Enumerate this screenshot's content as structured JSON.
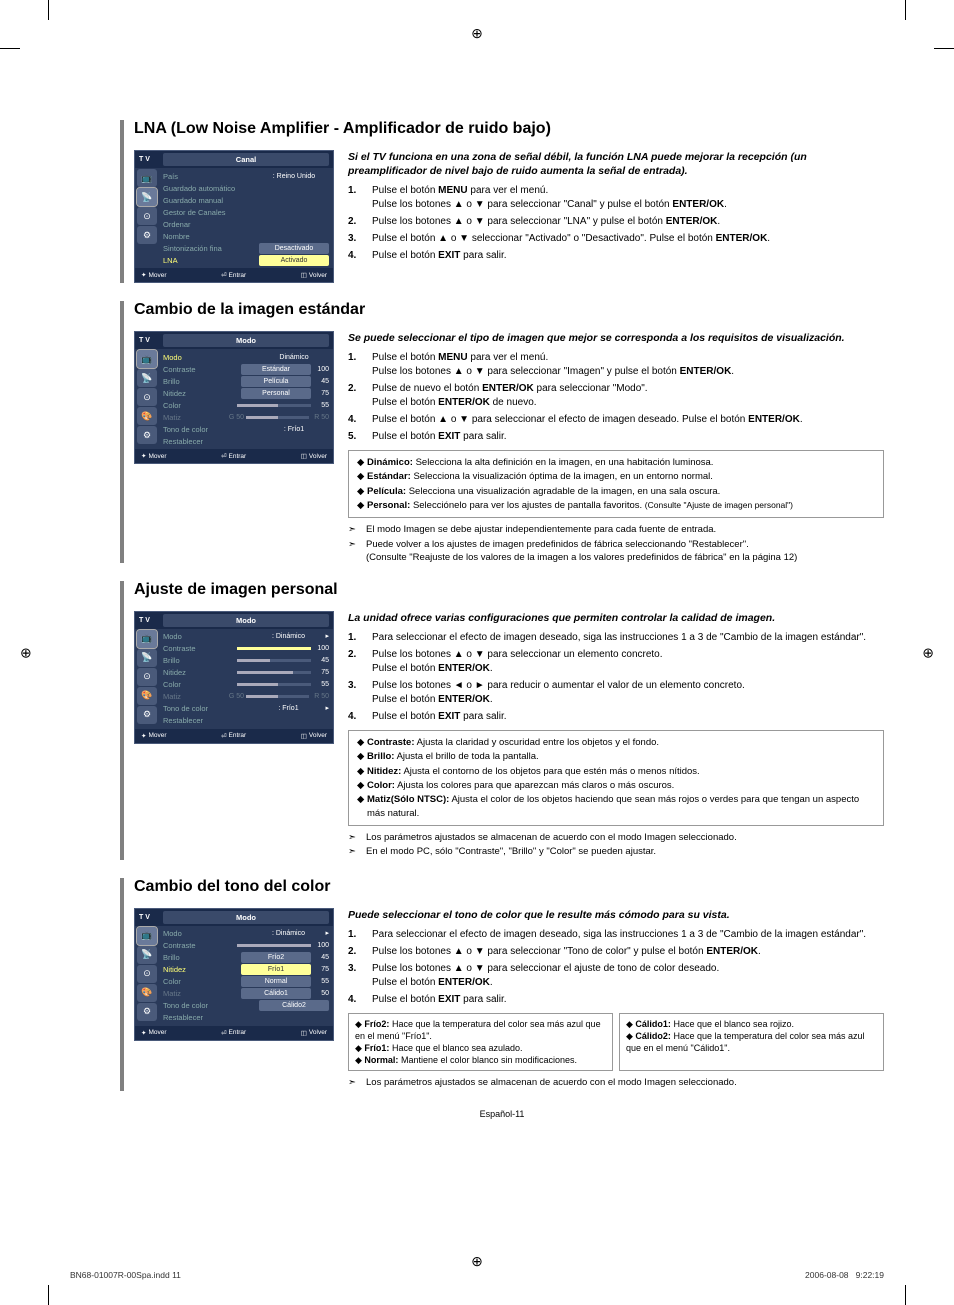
{
  "page": {
    "footer_center": "Español-11",
    "footer_file": "BN68-01007R-00Spa.indd   11",
    "footer_date": "2006-08-08",
    "footer_time": "9:22:19"
  },
  "s1": {
    "title": "LNA (Low Noise Amplifier - Amplificador de ruido bajo)",
    "intro": "Si el TV funciona en una zona de señal débil, la función LNA puede mejorar la recepción (un preamplificador de nivel bajo de ruido aumenta la señal de entrada).",
    "menu": {
      "bar": "Canal",
      "logo": "T V",
      "rows": [
        {
          "label": "País",
          "val": ": Reino Unido"
        },
        {
          "label": "Guardado automático",
          "val": ""
        },
        {
          "label": "Guardado manual",
          "val": ""
        },
        {
          "label": "Gestor de Canales",
          "val": ""
        },
        {
          "label": "Ordenar",
          "val": ""
        },
        {
          "label": "Nombre",
          "val": ""
        },
        {
          "label": "Sintonización fina",
          "val": "Desactivado",
          "btn": true
        },
        {
          "label": "LNA",
          "val": "Activado",
          "btn": true,
          "hl": true
        }
      ],
      "foot": {
        "a": "Mover",
        "b": "Entrar",
        "c": "Volver"
      }
    },
    "steps": {
      "1a": "Pulse el botón ",
      "1b": "MENU",
      "1c": " para ver el menú.",
      "1d": "Pulse los botones ▲ o ▼ para seleccionar \"Canal\" y pulse el botón ",
      "1e": "ENTER/OK",
      "1f": ".",
      "2a": "Pulse los botones ▲ o ▼ para seleccionar \"LNA\" y pulse el botón ",
      "2b": "ENTER/OK",
      "2c": ".",
      "3a": "Pulse el botón ▲ o ▼ seleccionar \"Activado\" o \"Desactivado\". Pulse el botón ",
      "3b": "ENTER/OK",
      "3c": ".",
      "4a": "Pulse el botón ",
      "4b": "EXIT",
      "4c": " para salir."
    }
  },
  "s2": {
    "title": "Cambio de la imagen estándar",
    "intro": "Se puede seleccionar el tipo de imagen que mejor se corresponda a los requisitos de visualización.",
    "menu": {
      "bar": "Modo",
      "logo": "T V",
      "rows": [
        {
          "label": "Modo",
          "val": "Dinámico",
          "drop": true,
          "hl": true
        },
        {
          "label": "Contraste",
          "opts": [
            "Estándar"
          ],
          "num": "100"
        },
        {
          "label": "Brillo",
          "opts": [
            "Película"
          ],
          "num": "45"
        },
        {
          "label": "Nitidez",
          "opts": [
            "Personal"
          ],
          "num": "75"
        },
        {
          "label": "Color",
          "num": "55",
          "bar": true
        },
        {
          "label": "Matiz",
          "g": "G 50",
          "r": "R 50",
          "dim": true
        },
        {
          "label": "Tono de color",
          "val": ": Frío1"
        },
        {
          "label": "Restablecer"
        }
      ],
      "foot": {
        "a": "Mover",
        "b": "Entrar",
        "c": "Volver"
      }
    },
    "steps": {
      "1a": "Pulse el botón ",
      "1b": "MENU",
      "1c": " para ver el menú.",
      "1d": "Pulse los botones ▲ o ▼ para seleccionar \"Imagen\" y pulse el botón ",
      "1e": "ENTER/OK",
      "1f": ".",
      "2a": "Pulse de nuevo el botón ",
      "2b": "ENTER/OK",
      "2c": " para seleccionar \"Modo\".",
      "2d": "Pulse el botón ",
      "2e": "ENTER/OK",
      "2f": " de nuevo.",
      "4a": "Pulse el botón ▲ o ▼  para seleccionar el efecto de imagen deseado. Pulse el botón ",
      "4b": "ENTER/OK",
      "4c": ".",
      "5a": "Pulse el botón ",
      "5b": "EXIT",
      "5c": " para salir."
    },
    "bullets": {
      "d": "Dinámico:",
      "dt": "Selecciona la alta definición en la imagen, en una habitación luminosa.",
      "e": "Estándar:",
      "et": "Selecciona la visualización óptima de la imagen, en un entorno normal.",
      "p": "Película:",
      "pt": "Selecciona una visualización agradable de la imagen, en una sala oscura.",
      "r": "Personal:",
      "rt": "Selecciónelo para ver los ajustes de pantalla favoritos. ",
      "rs": "(Consulte \"Ajuste de imagen personal\")"
    },
    "notes": {
      "n1": "El modo Imagen se debe ajustar independientemente para cada fuente de entrada.",
      "n2": "Puede volver a los ajustes de imagen predefinidos de fábrica seleccionando \"Restablecer\".",
      "n2s": "(Consulte \"Reajuste de los valores de la imagen a los valores predefinidos de fábrica\" en la página 12)"
    }
  },
  "s3": {
    "title": "Ajuste de imagen personal",
    "intro": "La unidad ofrece varias configuraciones que permiten controlar la calidad de imagen.",
    "menu": {
      "bar": "Modo",
      "logo": "T V",
      "rows": [
        {
          "label": "Modo",
          "val": ": Dinámico",
          "arrow": true
        },
        {
          "label": "Contraste",
          "num": "100",
          "bar": true,
          "hl": true
        },
        {
          "label": "Brillo",
          "num": "45",
          "bar": true
        },
        {
          "label": "Nitidez",
          "num": "75",
          "bar": true
        },
        {
          "label": "Color",
          "num": "55",
          "bar": true
        },
        {
          "label": "Matiz",
          "g": "G 50",
          "r": "R 50",
          "dim": true
        },
        {
          "label": "Tono de color",
          "val": ": Frío1",
          "arrow": true
        },
        {
          "label": "Restablecer"
        }
      ],
      "foot": {
        "a": "Mover",
        "b": "Entrar",
        "c": "Volver"
      }
    },
    "steps": {
      "1a": "Para seleccionar el efecto de imagen deseado, siga las instrucciones 1 a 3 de \"Cambio de la imagen estándar\".",
      "2a": "Pulse los botones ▲ o ▼ para seleccionar un elemento concreto.",
      "2b": "Pulse el botón ",
      "2c": "ENTER/OK",
      "2d": ".",
      "3a": "Pulse los botones ◄ o ► para reducir o aumentar el valor de un elemento concreto.",
      "3b": "Pulse el botón ",
      "3c": "ENTER/OK",
      "3d": ".",
      "4a": "Pulse el botón ",
      "4b": "EXIT",
      "4c": " para salir."
    },
    "bullets": {
      "c": "Contraste:",
      "ct": "Ajusta la claridad y oscuridad entre los objetos y el fondo.",
      "b": "Brillo:",
      "bt": "Ajusta el brillo de toda la pantalla.",
      "n": "Nitidez:",
      "nt": "Ajusta el contorno de los objetos para que estén más o menos nítidos.",
      "o": "Color:",
      "ot": "Ajusta los colores para que aparezcan más claros o más oscuros.",
      "m": "Matiz(Sólo NTSC):",
      "mt": "Ajusta el color de los objetos haciendo que sean más rojos o verdes para que tengan un aspecto más natural."
    },
    "notes": {
      "n1": "Los parámetros ajustados se almacenan de acuerdo con el modo Imagen seleccionado.",
      "n2": "En el modo PC, sólo \"Contraste\", \"Brillo\" y \"Color\" se pueden ajustar."
    }
  },
  "s4": {
    "title": "Cambio del tono del color",
    "intro": "Puede seleccionar el tono de color que le resulte más cómodo para su vista.",
    "menu": {
      "bar": "Modo",
      "logo": "T V",
      "rows": [
        {
          "label": "Modo",
          "val": ": Dinámico",
          "arrow": true
        },
        {
          "label": "Contraste",
          "num": "100",
          "mini": true
        },
        {
          "label": "Brillo",
          "opts": [
            "Frío2"
          ],
          "num": "45"
        },
        {
          "label": "Nitidez",
          "opts": [
            "Frío1"
          ],
          "num": "75",
          "hl": true
        },
        {
          "label": "Color",
          "opts": [
            "Normal"
          ],
          "num": "55"
        },
        {
          "label": "Matiz",
          "opts": [
            "Cálido1"
          ],
          "g": "G 50",
          "num": "50",
          "dim": true
        },
        {
          "label": "Tono de color",
          "opts": [
            "Cálido2"
          ]
        },
        {
          "label": "Restablecer"
        }
      ],
      "foot": {
        "a": "Mover",
        "b": "Entrar",
        "c": "Volver"
      }
    },
    "steps": {
      "1a": "Para seleccionar el efecto de imagen deseado, siga las instrucciones 1 a 3 de \"Cambio de la imagen estándar\".",
      "2a": "Pulse los botones ▲ o ▼ para seleccionar \"Tono de color\" y pulse el botón ",
      "2b": "ENTER/OK",
      "2c": ".",
      "3a": "Pulse los botones ▲ o ▼ para seleccionar el ajuste de tono de color deseado.",
      "3b": "Pulse el botón ",
      "3c": "ENTER/OK",
      "3d": ".",
      "4a": "Pulse el botón ",
      "4b": "EXIT",
      "4c": " para salir."
    },
    "left": {
      "f2": "Frío2:",
      "f2t": "Hace que la temperatura del color sea más azul que en el menú \"Frío1\".",
      "f1": "Frío1:",
      "f1t": "Hace que el blanco sea azulado.",
      "no": "Normal:",
      "not": "Mantiene el color blanco sin modificaciones."
    },
    "right": {
      "c1": "Cálido1:",
      "c1t": "Hace que el blanco sea rojizo.",
      "c2": "Cálido2:",
      "c2t": "Hace que la temperatura del color sea más azul que en el menú \"Cálido1\"."
    },
    "notes": {
      "n1": "Los parámetros ajustados se almacenan de acuerdo con el modo Imagen seleccionado."
    }
  }
}
